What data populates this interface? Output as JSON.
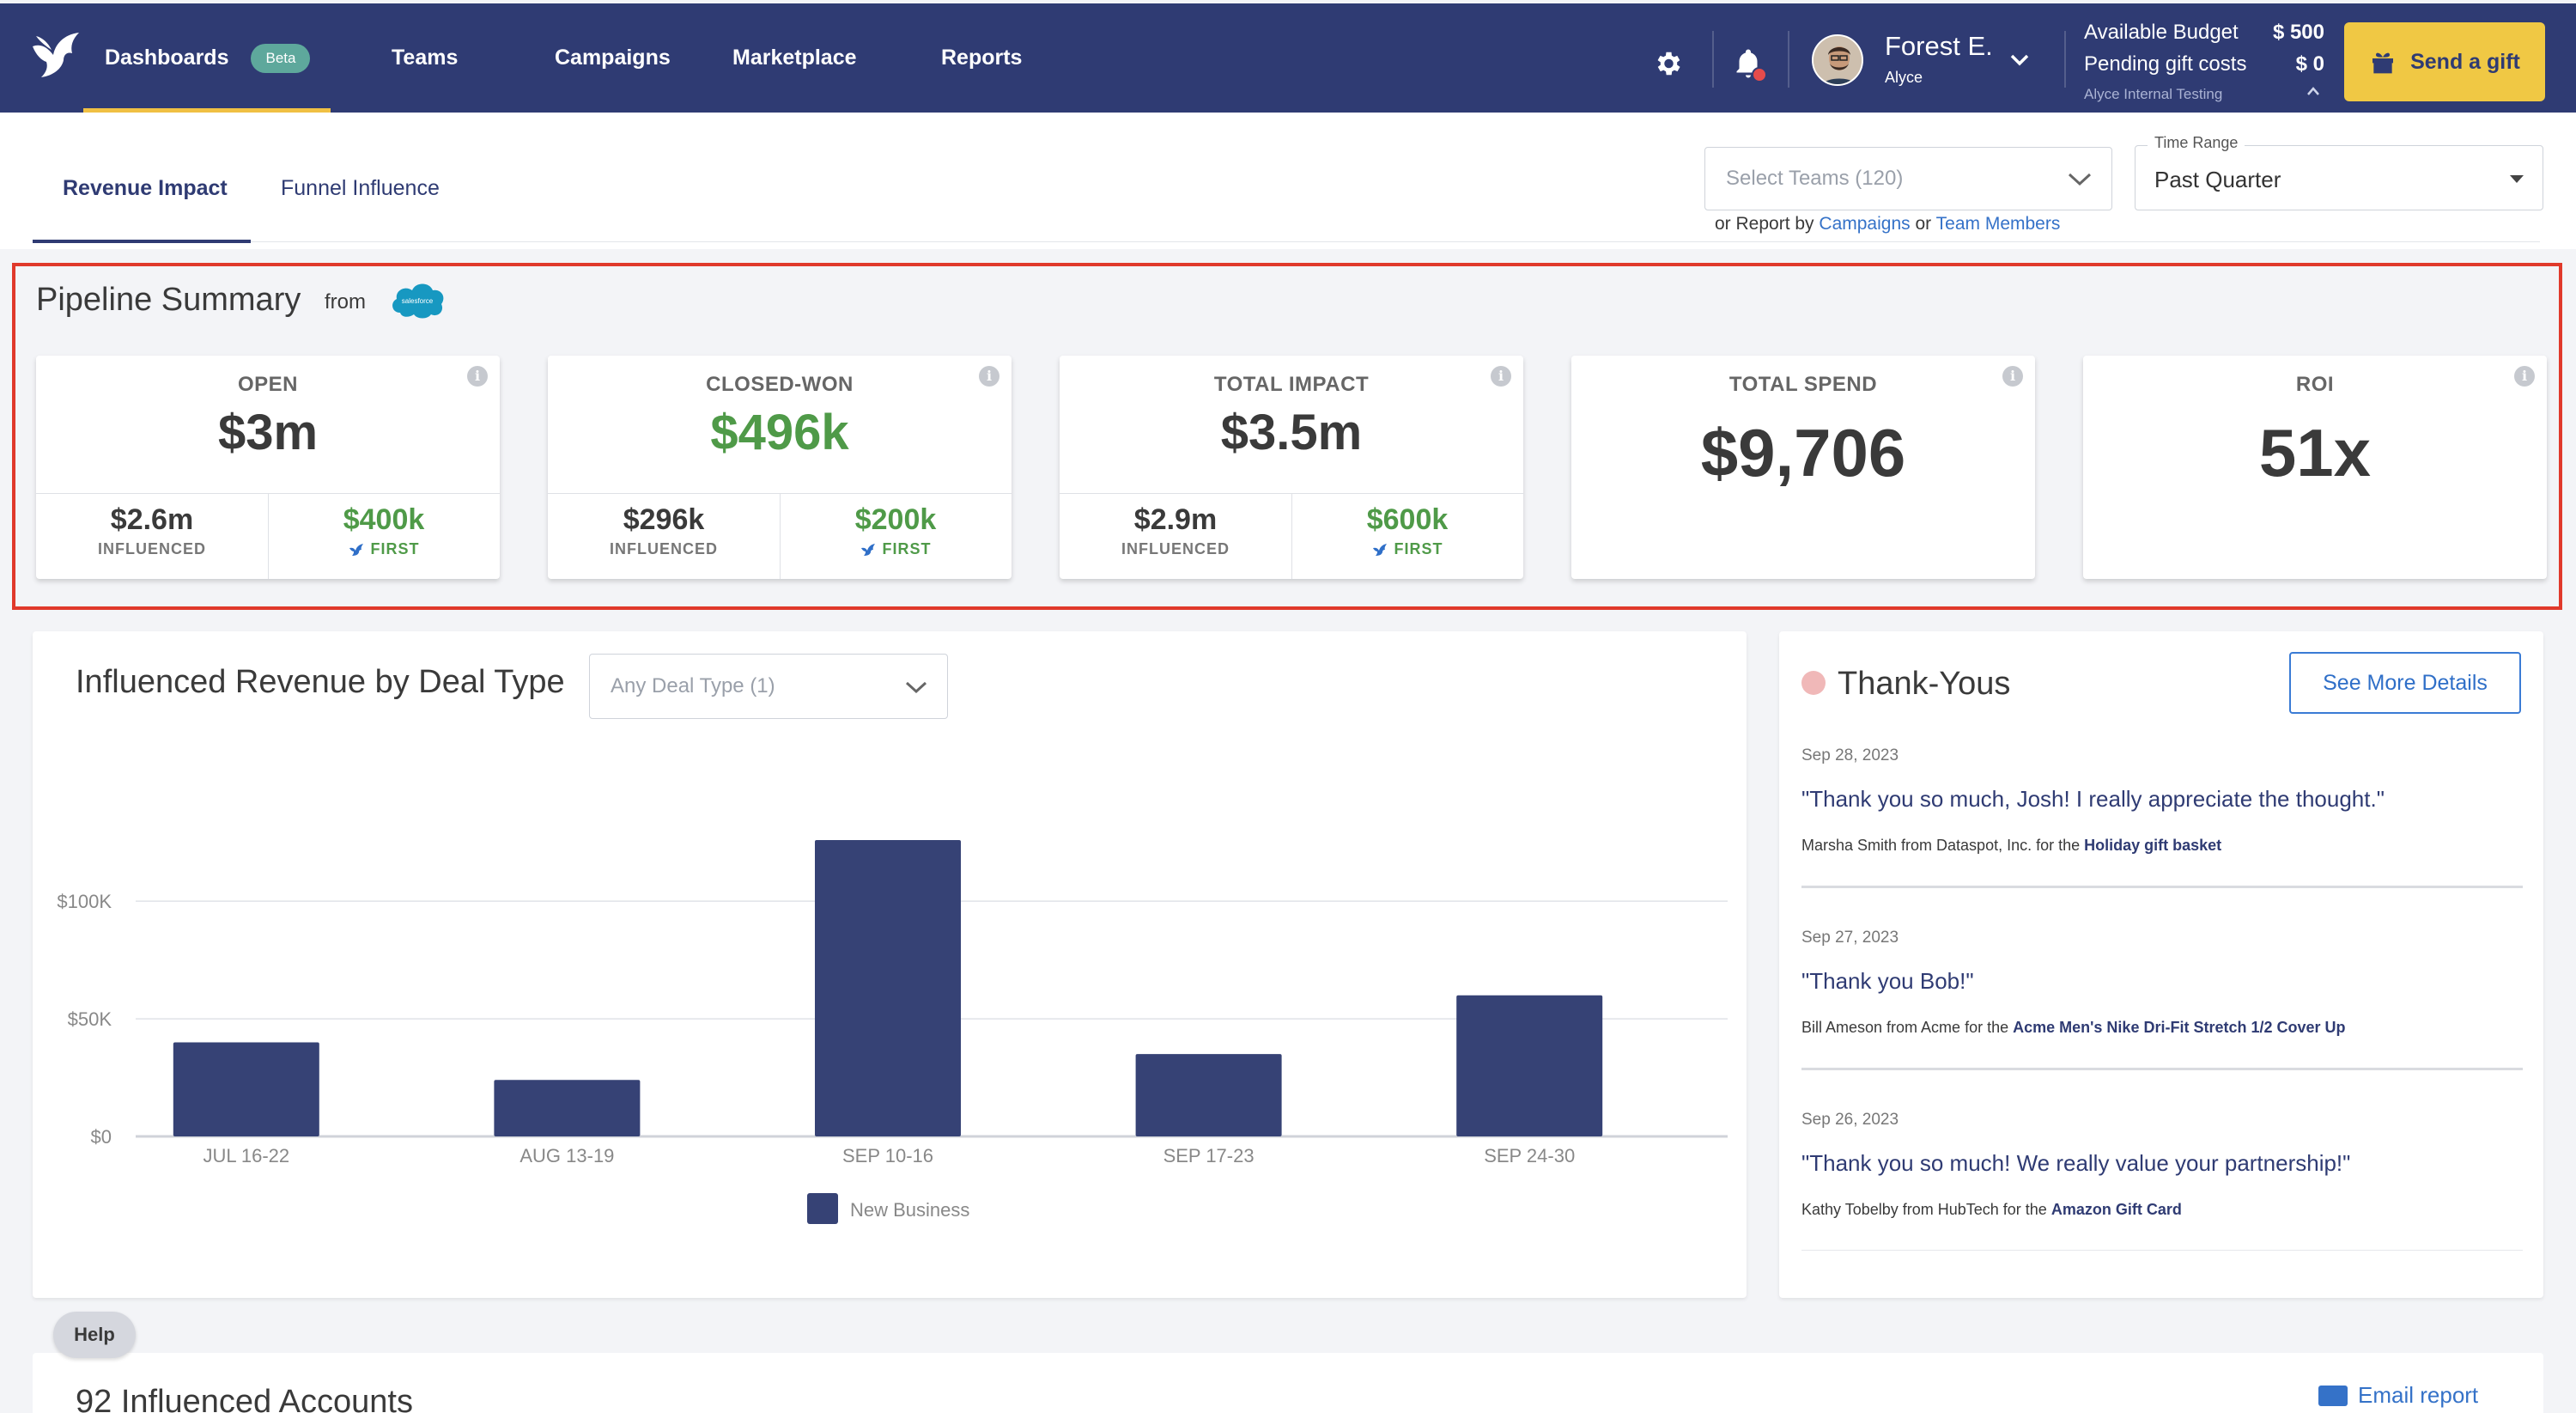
{
  "nav": {
    "dashboards": "Dashboards",
    "beta": "Beta",
    "teams": "Teams",
    "campaigns": "Campaigns",
    "marketplace": "Marketplace",
    "reports": "Reports"
  },
  "user": {
    "name": "Forest E.",
    "org": "Alyce"
  },
  "budget": {
    "available_label": "Available Budget",
    "available_value": "$ 500",
    "pending_label": "Pending gift costs",
    "pending_value": "$ 0",
    "account": "Alyce Internal Testing"
  },
  "send_gift": "Send a gift",
  "tabs": {
    "revenue_impact": "Revenue Impact",
    "funnel_influence": "Funnel Influence"
  },
  "filters": {
    "teams_placeholder": "Select Teams (120)",
    "report_by_prefix": "or Report by",
    "report_by_campaigns": "Campaigns",
    "report_by_or": "or",
    "report_by_members": "Team Members",
    "time_range_label": "Time Range",
    "time_range_value": "Past Quarter"
  },
  "pipeline": {
    "title": "Pipeline Summary",
    "from": "from",
    "salesforce_logo_text": "salesforce",
    "cards": [
      {
        "title": "OPEN",
        "value": "$3m",
        "influenced": "$2.6m",
        "influenced_label": "INFLUENCED",
        "first": "$400k",
        "first_label": "FIRST"
      },
      {
        "title": "CLOSED-WON",
        "value": "$496k",
        "influenced": "$296k",
        "influenced_label": "INFLUENCED",
        "first": "$200k",
        "first_label": "FIRST"
      },
      {
        "title": "TOTAL IMPACT",
        "value": "$3.5m",
        "influenced": "$2.9m",
        "influenced_label": "INFLUENCED",
        "first": "$600k",
        "first_label": "FIRST"
      },
      {
        "title": "TOTAL SPEND",
        "value": "$9,706"
      },
      {
        "title": "ROI",
        "value": "51x"
      }
    ],
    "info_glyph": "i"
  },
  "revenue": {
    "title": "Influenced Revenue by Deal Type",
    "deal_type_placeholder": "Any Deal Type (1)"
  },
  "chart_data": {
    "type": "bar",
    "categories": [
      "JUL 16-22",
      "AUG 13-19",
      "SEP 10-16",
      "SEP 17-23",
      "SEP 24-30"
    ],
    "series": [
      {
        "name": "New Business",
        "values": [
          40000,
          24000,
          126000,
          35000,
          60000
        ]
      }
    ],
    "ytick_values": [
      0,
      50000,
      100000
    ],
    "yticks": [
      "$0",
      "$50K",
      "$100K"
    ],
    "ylim": [
      0,
      130000
    ],
    "grid": true,
    "legend": "bottom-center",
    "colors": {
      "bar": "#364275",
      "grid": "#e1e3e8",
      "axis": "#d0d3d9",
      "tick_text": "#888888"
    }
  },
  "thank_yous": {
    "title": "Thank-Yous",
    "see_more": "See More Details",
    "items": [
      {
        "date": "Sep 28, 2023",
        "quote": "\"Thank you so much, Josh! I really appreciate the thought.\"",
        "from": "Marsha Smith from Dataspot, Inc. for the",
        "gift": "Holiday gift basket"
      },
      {
        "date": "Sep 27, 2023",
        "quote": "\"Thank you Bob!\"",
        "from": "Bill Ameson from Acme for the",
        "gift": "Acme Men's Nike Dri-Fit Stretch 1/2 Cover Up"
      },
      {
        "date": "Sep 26, 2023",
        "quote": "\"Thank you so much! We really value your partnership!\"",
        "from": "Kathy Tobelby from HubTech for the",
        "gift": "Amazon Gift Card"
      }
    ]
  },
  "help": "Help",
  "accounts": {
    "title": "92 Influenced Accounts",
    "email_link": "Email report"
  },
  "colors": {
    "nav_bg": "#2f3b73",
    "accent_yellow": "#f0c844",
    "green": "#4f9a48",
    "highlight_border": "#e0392b",
    "link_blue": "#3572c8"
  }
}
